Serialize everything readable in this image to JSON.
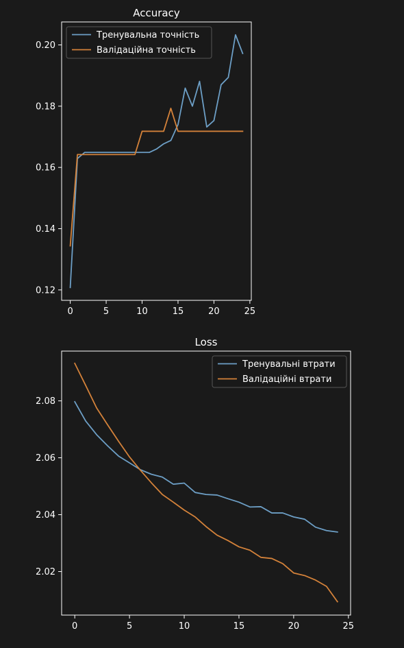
{
  "chart_data": [
    {
      "type": "line",
      "title": "Accuracy",
      "xlabel": "",
      "ylabel": "",
      "xlim": [
        -1.2,
        25.2
      ],
      "ylim": [
        0.1166,
        0.2075
      ],
      "xticks": [
        0,
        5,
        10,
        15,
        20,
        25
      ],
      "yticks": [
        0.12,
        0.14,
        0.16,
        0.18,
        0.2
      ],
      "grid": false,
      "legend_position": "top-left",
      "x": [
        0,
        1,
        2,
        3,
        4,
        5,
        6,
        7,
        8,
        9,
        10,
        11,
        12,
        13,
        14,
        15,
        16,
        17,
        18,
        19,
        20,
        21,
        22,
        23,
        24
      ],
      "series": [
        {
          "name": "Тренувальна точність",
          "color": "#6d9fc6",
          "values": [
            0.1208,
            0.1629,
            0.1649,
            0.1649,
            0.1649,
            0.1649,
            0.1649,
            0.1649,
            0.1649,
            0.1649,
            0.1649,
            0.1649,
            0.166,
            0.1677,
            0.1688,
            0.174,
            0.1859,
            0.18,
            0.1881,
            0.1732,
            0.1753,
            0.187,
            0.1894,
            0.2033,
            0.1972
          ]
        },
        {
          "name": "Валідаційна точність",
          "color": "#d4823a",
          "values": [
            0.1344,
            0.1642,
            0.1642,
            0.1642,
            0.1642,
            0.1642,
            0.1642,
            0.1642,
            0.1642,
            0.1642,
            0.1718,
            0.1718,
            0.1718,
            0.1718,
            0.1793,
            0.1718,
            0.1718,
            0.1718,
            0.1718,
            0.1718,
            0.1718,
            0.1718,
            0.1718,
            0.1718,
            0.1718
          ]
        }
      ]
    },
    {
      "type": "line",
      "title": "Loss",
      "xlabel": "",
      "ylabel": "",
      "xlim": [
        -1.2,
        25.2
      ],
      "ylim": [
        2.0047,
        2.0975
      ],
      "xticks": [
        0,
        5,
        10,
        15,
        20,
        25
      ],
      "yticks": [
        2.02,
        2.04,
        2.06,
        2.08
      ],
      "grid": false,
      "legend_position": "top-right",
      "x": [
        0,
        1,
        2,
        3,
        4,
        5,
        6,
        7,
        8,
        9,
        10,
        11,
        12,
        13,
        14,
        15,
        16,
        17,
        18,
        19,
        20,
        21,
        22,
        23,
        24
      ],
      "series": [
        {
          "name": "Тренувальні втрати",
          "color": "#6d9fc6",
          "values": [
            2.0797,
            2.0729,
            2.0681,
            2.0642,
            2.0606,
            2.0582,
            2.0558,
            2.0542,
            2.0532,
            2.0507,
            2.0511,
            2.0478,
            2.0471,
            2.0469,
            2.0456,
            2.0444,
            2.0427,
            2.0428,
            2.0406,
            2.0406,
            2.0392,
            2.0384,
            2.0356,
            2.0344,
            2.0339
          ]
        },
        {
          "name": "Валідаційні втрати",
          "color": "#d4823a",
          "values": [
            2.0932,
            2.0854,
            2.0775,
            2.0716,
            2.0658,
            2.0603,
            2.0556,
            2.0512,
            2.0471,
            2.0444,
            2.0416,
            2.0392,
            2.0358,
            2.0328,
            2.0309,
            2.0287,
            2.0275,
            2.025,
            2.0246,
            2.0228,
            2.0195,
            2.0186,
            2.017,
            2.0148,
            2.0094
          ]
        }
      ]
    }
  ]
}
